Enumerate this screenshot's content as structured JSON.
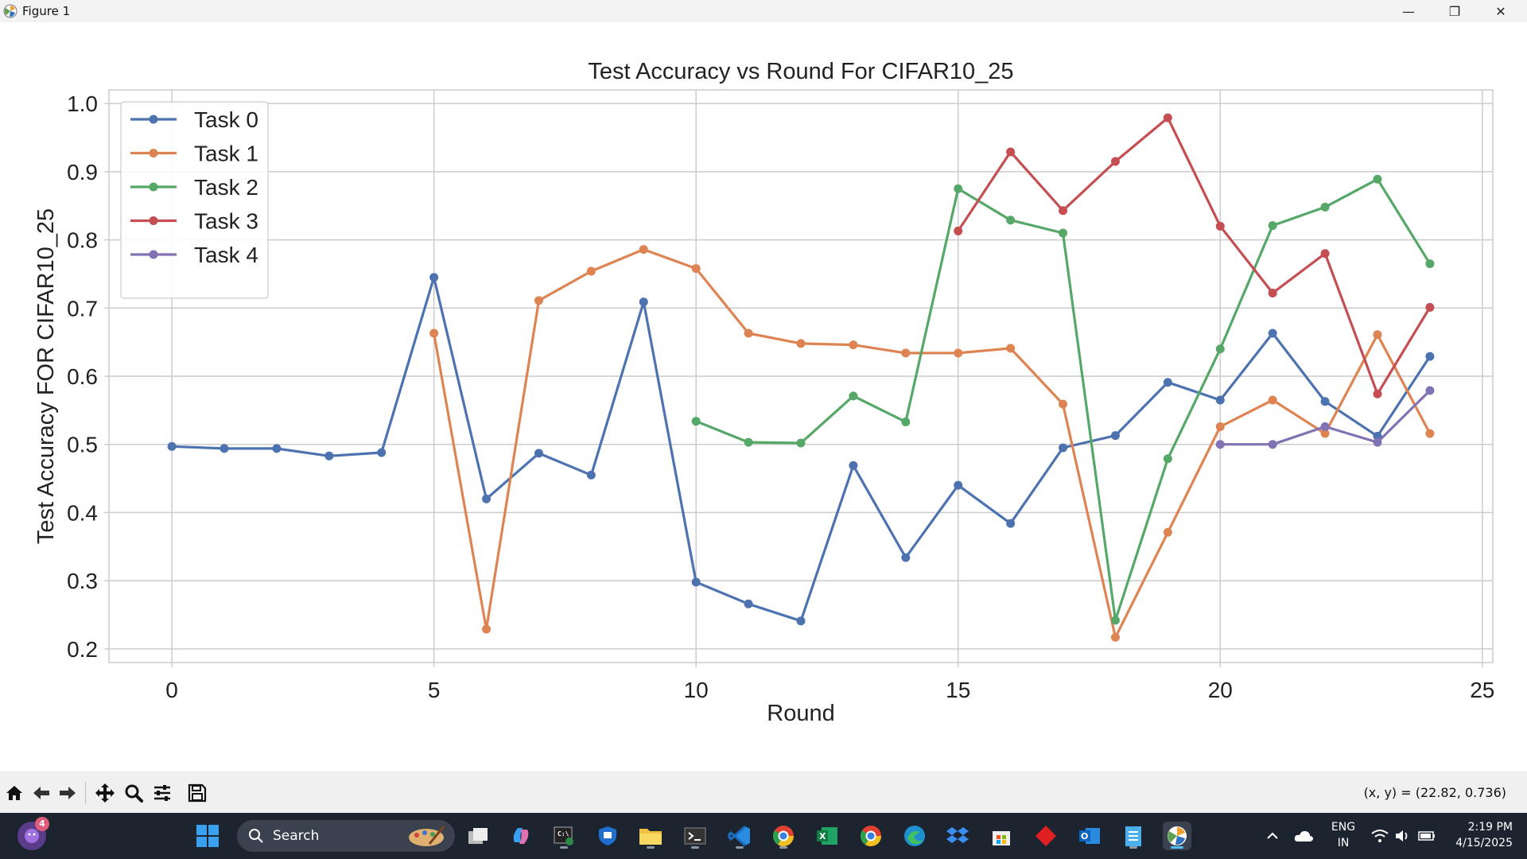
{
  "window": {
    "title": "Figure 1",
    "minimize": "—",
    "maximize": "❐",
    "close": "✕"
  },
  "toolbar": {
    "icons": [
      "home-icon",
      "back-icon",
      "forward-icon",
      "pan-icon",
      "zoom-icon",
      "configure-subplots-icon",
      "save-icon"
    ],
    "coords": "(x, y) = (22.82, 0.736)"
  },
  "taskbar": {
    "search_placeholder": "Search",
    "notification_badge": "4",
    "language": "ENG",
    "region": "IN",
    "time": "2:19 PM",
    "date": "4/15/2025"
  },
  "colors": {
    "task0": "#4c72b0",
    "task1": "#dd8452",
    "task2": "#55a868",
    "task3": "#c44e52",
    "task4": "#8172b3",
    "grid": "#cccccc"
  },
  "chart_data": {
    "type": "line",
    "title": "Test Accuracy vs Round For CIFAR10_25",
    "xlabel": "Round",
    "ylabel": "Test Accuracy FOR CIFAR10_25",
    "xlim": [
      -1.2,
      25.2
    ],
    "ylim": [
      0.18,
      1.02
    ],
    "xticks": [
      0,
      5,
      10,
      15,
      20,
      25
    ],
    "yticks": [
      0.2,
      0.3,
      0.4,
      0.5,
      0.6,
      0.7,
      0.8,
      0.9,
      1.0
    ],
    "grid": true,
    "legend_position": "top-left",
    "series": [
      {
        "name": "Task 0",
        "color": "#4c72b0",
        "x": [
          0,
          1,
          2,
          3,
          4,
          5,
          6,
          7,
          8,
          9,
          10,
          11,
          12,
          13,
          14,
          15,
          16,
          17,
          18,
          19,
          20,
          21,
          22,
          23,
          24
        ],
        "y": [
          0.497,
          0.494,
          0.494,
          0.483,
          0.488,
          0.745,
          0.42,
          0.487,
          0.455,
          0.709,
          0.298,
          0.266,
          0.241,
          0.469,
          0.334,
          0.44,
          0.384,
          0.495,
          0.513,
          0.591,
          0.565,
          0.663,
          0.563,
          0.512,
          0.629
        ]
      },
      {
        "name": "Task 1",
        "color": "#dd8452",
        "x": [
          5,
          6,
          7,
          8,
          9,
          10,
          11,
          12,
          13,
          14,
          15,
          16,
          17,
          18,
          19,
          20,
          21,
          22,
          23,
          24
        ],
        "y": [
          0.663,
          0.229,
          0.711,
          0.754,
          0.786,
          0.758,
          0.663,
          0.648,
          0.646,
          0.634,
          0.634,
          0.641,
          0.559,
          0.217,
          0.371,
          0.526,
          0.565,
          0.516,
          0.661,
          0.516
        ]
      },
      {
        "name": "Task 2",
        "color": "#55a868",
        "x": [
          10,
          11,
          12,
          13,
          14,
          15,
          16,
          17,
          18,
          19,
          20,
          21,
          22,
          23,
          24
        ],
        "y": [
          0.534,
          0.503,
          0.502,
          0.571,
          0.533,
          0.875,
          0.829,
          0.81,
          0.242,
          0.479,
          0.64,
          0.821,
          0.848,
          0.889,
          0.765
        ]
      },
      {
        "name": "Task 3",
        "color": "#c44e52",
        "x": [
          15,
          16,
          17,
          18,
          19,
          20,
          21,
          22,
          23,
          24
        ],
        "y": [
          0.813,
          0.929,
          0.843,
          0.915,
          0.979,
          0.82,
          0.722,
          0.78,
          0.574,
          0.701
        ]
      },
      {
        "name": "Task 4",
        "color": "#8172b3",
        "x": [
          20,
          21,
          22,
          23,
          24
        ],
        "y": [
          0.5,
          0.5,
          0.526,
          0.503,
          0.579
        ]
      }
    ]
  }
}
